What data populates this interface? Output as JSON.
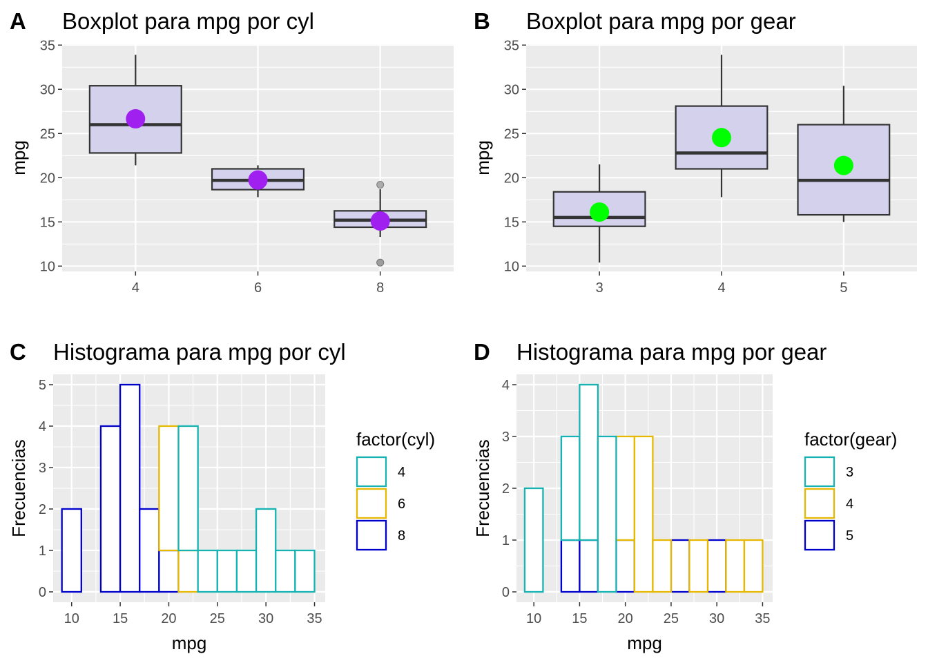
{
  "chart_data": [
    {
      "tag": "A",
      "type": "boxplot",
      "title": "Boxplot para mpg por cyl",
      "xlabel": "",
      "ylabel": "mpg",
      "ylim": [
        9.4,
        35.1
      ],
      "yticks": [
        10,
        15,
        20,
        25,
        30,
        35
      ],
      "categories": [
        "4",
        "6",
        "8"
      ],
      "box_fill": "#d3d1ec",
      "box_stroke": "#333333",
      "mean_color": "#a020f0",
      "boxes": [
        {
          "category": "4",
          "min": 21.4,
          "q1": 22.8,
          "median": 26.0,
          "q3": 30.4,
          "max": 33.9,
          "mean": 26.66,
          "outliers": []
        },
        {
          "category": "6",
          "min": 17.8,
          "q1": 18.65,
          "median": 19.7,
          "q3": 21.0,
          "max": 21.4,
          "mean": 19.74,
          "outliers": []
        },
        {
          "category": "8",
          "min": 13.3,
          "q1": 14.4,
          "median": 15.2,
          "q3": 16.25,
          "max": 18.7,
          "mean": 15.1,
          "outliers": [
            10.4,
            10.4,
            19.2
          ]
        }
      ]
    },
    {
      "tag": "B",
      "type": "boxplot",
      "title": "Boxplot para mpg por gear",
      "xlabel": "",
      "ylabel": "mpg",
      "ylim": [
        9.4,
        35.1
      ],
      "yticks": [
        10,
        15,
        20,
        25,
        30,
        35
      ],
      "categories": [
        "3",
        "4",
        "5"
      ],
      "box_fill": "#d3d1ec",
      "box_stroke": "#333333",
      "mean_color": "#00ff00",
      "boxes": [
        {
          "category": "3",
          "min": 10.4,
          "q1": 14.5,
          "median": 15.5,
          "q3": 18.4,
          "max": 21.5,
          "mean": 16.11,
          "outliers": []
        },
        {
          "category": "4",
          "min": 17.8,
          "q1": 21.0,
          "median": 22.8,
          "q3": 28.1,
          "max": 33.9,
          "mean": 24.53,
          "outliers": []
        },
        {
          "category": "5",
          "min": 15.0,
          "q1": 15.8,
          "median": 19.7,
          "q3": 26.0,
          "max": 30.4,
          "mean": 21.38,
          "outliers": []
        }
      ]
    },
    {
      "tag": "C",
      "type": "histogram",
      "title": "Histograma para mpg por cyl",
      "xlabel": "mpg",
      "ylabel": "Frecuencias",
      "xlim": [
        8.1,
        36.1
      ],
      "ylim": [
        -0.25,
        5.25
      ],
      "xticks": [
        10,
        15,
        20,
        25,
        30,
        35
      ],
      "yticks": [
        0,
        1,
        2,
        3,
        4,
        5
      ],
      "bin_edges": [
        9,
        11,
        13,
        15,
        17,
        19,
        21,
        23,
        25,
        27,
        29,
        31,
        33,
        35
      ],
      "legend": {
        "title": "factor(cyl)",
        "position": "right"
      },
      "series": [
        {
          "name": "8",
          "color": "#0000cd",
          "counts": [
            2,
            0,
            4,
            5,
            2,
            1,
            0,
            0,
            0,
            0,
            0,
            0,
            0
          ]
        },
        {
          "name": "6",
          "color": "#e6b800",
          "counts": [
            0,
            0,
            0,
            0,
            0,
            3,
            1,
            0,
            0,
            0,
            0,
            0,
            0
          ]
        },
        {
          "name": "4",
          "color": "#17b3b3",
          "counts": [
            0,
            0,
            0,
            0,
            0,
            0,
            3,
            1,
            1,
            1,
            2,
            1,
            1
          ]
        }
      ],
      "legend_order": [
        "4",
        "6",
        "8"
      ]
    },
    {
      "tag": "D",
      "type": "histogram",
      "title": "Histograma para mpg por gear",
      "xlabel": "mpg",
      "ylabel": "Frecuencias",
      "xlim": [
        8.1,
        36.1
      ],
      "ylim": [
        -0.2,
        4.2
      ],
      "xticks": [
        10,
        15,
        20,
        25,
        30,
        35
      ],
      "yticks": [
        0,
        1,
        2,
        3,
        4
      ],
      "bin_edges": [
        9,
        11,
        13,
        15,
        17,
        19,
        21,
        23,
        25,
        27,
        29,
        31,
        33,
        35
      ],
      "legend": {
        "title": "factor(gear)",
        "position": "right"
      },
      "series": [
        {
          "name": "5",
          "color": "#0000cd",
          "counts": [
            0,
            0,
            1,
            1,
            0,
            1,
            0,
            0,
            1,
            0,
            1,
            0,
            0
          ]
        },
        {
          "name": "4",
          "color": "#e6b800",
          "counts": [
            0,
            0,
            0,
            0,
            0,
            2,
            3,
            1,
            0,
            1,
            0,
            1,
            1
          ]
        },
        {
          "name": "3",
          "color": "#17b3b3",
          "counts": [
            2,
            0,
            2,
            3,
            3,
            0,
            0,
            0,
            0,
            0,
            0,
            0,
            0
          ]
        }
      ],
      "legend_order": [
        "3",
        "4",
        "5"
      ]
    }
  ]
}
